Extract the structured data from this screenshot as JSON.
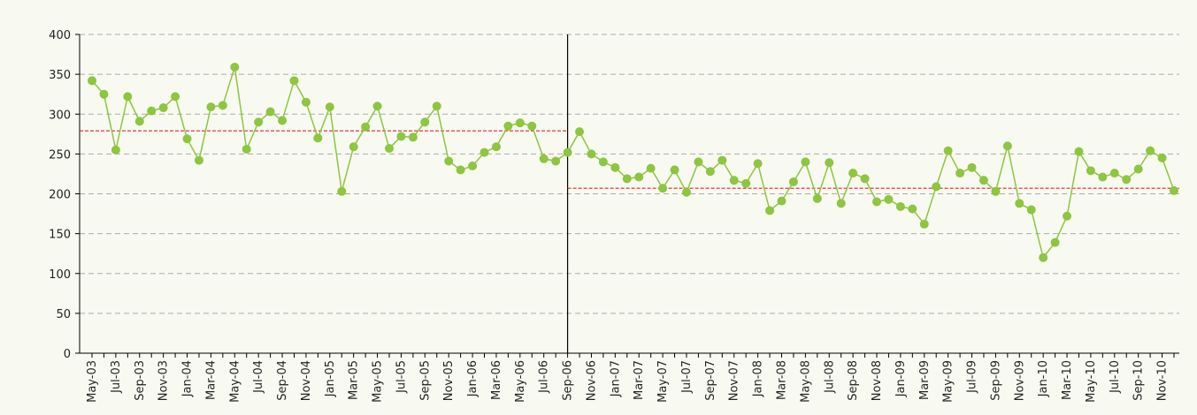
{
  "chart_data": {
    "type": "line",
    "categories": [
      "May-03",
      null,
      "Jul-03",
      null,
      "Sep-03",
      null,
      "Nov-03",
      null,
      "Jan-04",
      null,
      "Mar-04",
      null,
      "May-04",
      null,
      "Jul-04",
      null,
      "Sep-04",
      null,
      "Nov-04",
      null,
      "Jan-05",
      null,
      "Mar-05",
      null,
      "May-05",
      null,
      "Jul-05",
      null,
      "Sep-05",
      null,
      "Nov-05",
      null,
      "Jan-06",
      null,
      "Mar-06",
      null,
      "May-06",
      null,
      "Jul-06",
      null,
      "Sep-06",
      null,
      "Nov-06",
      null,
      "Jan-07",
      null,
      "Mar-07",
      null,
      "May-07",
      null,
      "Jul-07",
      null,
      "Sep-07",
      null,
      "Nov-07",
      null,
      "Jan-08",
      null,
      "Mar-08",
      null,
      "May-08",
      null,
      "Jul-08",
      null,
      "Sep-08",
      null,
      "Nov-08",
      null,
      "Jan-09",
      null,
      "Mar-09",
      null,
      "May-09",
      null,
      "Jul-09",
      null,
      "Sep-09",
      null,
      "Nov-09",
      null,
      "Jan-10",
      null,
      "Mar-10",
      null,
      "May-10",
      null,
      "Jul-10",
      null,
      "Sep-10",
      null,
      "Nov-10",
      null
    ],
    "series": [
      {
        "color": "#8dc63f",
        "values": [
          342,
          325,
          255,
          322,
          291,
          304,
          308,
          322,
          269,
          242,
          309,
          311,
          359,
          256,
          290,
          303,
          292,
          342,
          315,
          270,
          309,
          203,
          259,
          284,
          310,
          257,
          272,
          271,
          290,
          310,
          241,
          230,
          235,
          252,
          259,
          285,
          289,
          285,
          244,
          241,
          252,
          278,
          250,
          240,
          233,
          219,
          221,
          232,
          207,
          230,
          202,
          240,
          228,
          242,
          217,
          213,
          238,
          179,
          191,
          215,
          240,
          194,
          239,
          188,
          226,
          219,
          190,
          193,
          184,
          181,
          162,
          209,
          254,
          226,
          233,
          217,
          203,
          260,
          188,
          180,
          120,
          139,
          172,
          253,
          229,
          221,
          226,
          218,
          231,
          254,
          245,
          204
        ]
      }
    ],
    "divider": "Sep-06",
    "reference_lines": [
      279,
      207
    ],
    "reference_color": "#d9262b",
    "ylim": [
      0,
      400
    ],
    "yticks": [
      0,
      50,
      100,
      150,
      200,
      250,
      300,
      350,
      400
    ],
    "grid": true
  }
}
